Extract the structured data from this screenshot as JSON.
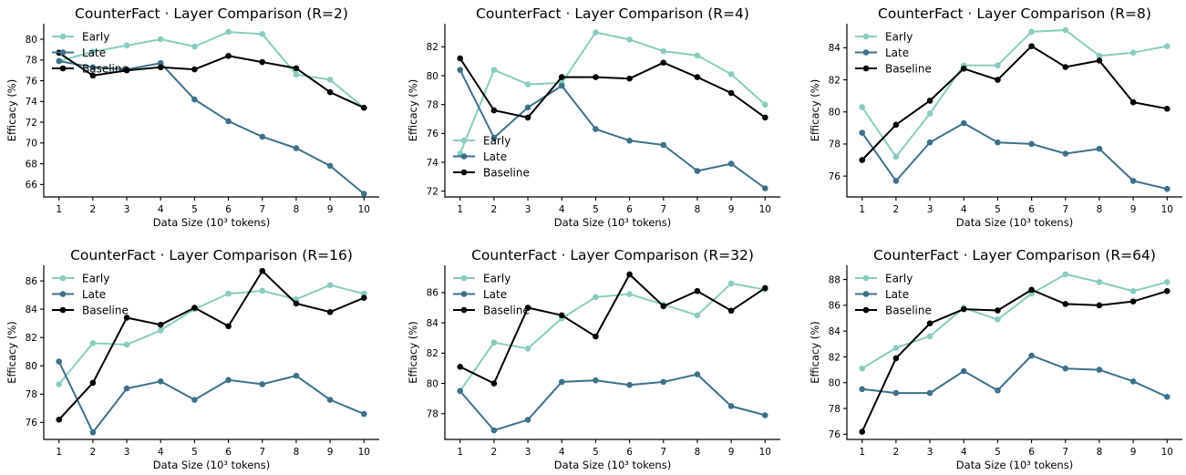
{
  "chart_data": [
    {
      "type": "line",
      "title": "CounterFact · Layer Comparison (R=2)",
      "xlabel": "Data Size (10³ tokens)",
      "ylabel": "Efficacy (%)",
      "x": [
        1,
        2,
        3,
        4,
        5,
        6,
        7,
        8,
        9,
        10
      ],
      "ylim": [
        64.8,
        81.5
      ],
      "yticks": [
        66,
        68,
        70,
        72,
        74,
        76,
        78,
        80
      ],
      "legend": "upper-left",
      "series": [
        {
          "name": "Early",
          "color": "#88cdbe",
          "values": [
            77.9,
            78.8,
            79.4,
            80.0,
            79.3,
            80.7,
            80.5,
            76.6,
            76.1,
            73.4
          ]
        },
        {
          "name": "Late",
          "color": "#3d7189",
          "values": [
            77.9,
            77.3,
            77.1,
            77.7,
            74.2,
            72.1,
            70.6,
            69.5,
            67.8,
            65.1
          ]
        },
        {
          "name": "Baseline",
          "color": "#000000",
          "values": [
            78.7,
            76.5,
            77.0,
            77.3,
            77.1,
            78.4,
            77.8,
            77.2,
            74.9,
            73.4
          ]
        }
      ]
    },
    {
      "type": "line",
      "title": "CounterFact · Layer Comparison (R=4)",
      "xlabel": "Data Size (10³ tokens)",
      "ylabel": "Efficacy (%)",
      "x": [
        1,
        2,
        3,
        4,
        5,
        6,
        7,
        8,
        9,
        10
      ],
      "ylim": [
        71.6,
        83.6
      ],
      "yticks": [
        72,
        74,
        76,
        78,
        80,
        82
      ],
      "legend": "lower-left",
      "series": [
        {
          "name": "Early",
          "color": "#88cdbe",
          "values": [
            74.6,
            80.4,
            79.4,
            79.5,
            83.0,
            82.5,
            81.7,
            81.4,
            80.1,
            78.0
          ]
        },
        {
          "name": "Late",
          "color": "#3d7189",
          "values": [
            80.4,
            75.7,
            77.8,
            79.3,
            76.3,
            75.5,
            75.2,
            73.4,
            73.9,
            72.2
          ]
        },
        {
          "name": "Baseline",
          "color": "#000000",
          "values": [
            81.2,
            77.6,
            77.1,
            79.9,
            79.9,
            79.8,
            80.9,
            79.9,
            78.8,
            77.1
          ]
        }
      ]
    },
    {
      "type": "line",
      "title": "CounterFact · Layer Comparison (R=8)",
      "xlabel": "Data Size (10³ tokens)",
      "ylabel": "Efficacy (%)",
      "x": [
        1,
        2,
        3,
        4,
        5,
        6,
        7,
        8,
        9,
        10
      ],
      "ylim": [
        74.7,
        85.5
      ],
      "yticks": [
        76,
        78,
        80,
        82,
        84
      ],
      "legend": "upper-left",
      "series": [
        {
          "name": "Early",
          "color": "#88cdbe",
          "values": [
            80.3,
            77.2,
            79.9,
            82.9,
            82.9,
            85.0,
            85.1,
            83.5,
            83.7,
            84.1
          ]
        },
        {
          "name": "Late",
          "color": "#3d7189",
          "values": [
            78.7,
            75.7,
            78.1,
            79.3,
            78.1,
            78.0,
            77.4,
            77.7,
            75.7,
            75.2
          ]
        },
        {
          "name": "Baseline",
          "color": "#000000",
          "values": [
            77.0,
            79.2,
            80.7,
            82.7,
            82.0,
            84.1,
            82.8,
            83.2,
            80.6,
            80.2
          ]
        }
      ]
    },
    {
      "type": "line",
      "title": "CounterFact · Layer Comparison (R=16)",
      "xlabel": "Data Size (10³ tokens)",
      "ylabel": "Efficacy (%)",
      "x": [
        1,
        2,
        3,
        4,
        5,
        6,
        7,
        8,
        9,
        10
      ],
      "ylim": [
        74.8,
        87.1
      ],
      "yticks": [
        76,
        78,
        80,
        82,
        84,
        86
      ],
      "legend": "upper-left",
      "series": [
        {
          "name": "Early",
          "color": "#88cdbe",
          "values": [
            78.7,
            81.6,
            81.5,
            82.5,
            84.0,
            85.1,
            85.3,
            84.7,
            85.7,
            85.1
          ]
        },
        {
          "name": "Late",
          "color": "#3d7189",
          "values": [
            80.3,
            75.3,
            78.4,
            78.9,
            77.6,
            79.0,
            78.7,
            79.3,
            77.6,
            76.6
          ]
        },
        {
          "name": "Baseline",
          "color": "#000000",
          "values": [
            76.2,
            78.8,
            83.4,
            82.9,
            84.1,
            82.8,
            86.7,
            84.4,
            83.8,
            84.8
          ]
        }
      ]
    },
    {
      "type": "line",
      "title": "CounterFact · Layer Comparison (R=32)",
      "xlabel": "Data Size (10³ tokens)",
      "ylabel": "Efficacy (%)",
      "x": [
        1,
        2,
        3,
        4,
        5,
        6,
        7,
        8,
        9,
        10
      ],
      "ylim": [
        76.3,
        87.8
      ],
      "yticks": [
        78,
        80,
        82,
        84,
        86
      ],
      "legend": "upper-left",
      "series": [
        {
          "name": "Early",
          "color": "#88cdbe",
          "values": [
            79.5,
            82.7,
            82.3,
            84.3,
            85.7,
            85.9,
            85.2,
            84.5,
            86.6,
            86.2
          ]
        },
        {
          "name": "Late",
          "color": "#3d7189",
          "values": [
            79.5,
            76.9,
            77.6,
            80.1,
            80.2,
            79.9,
            80.1,
            80.6,
            78.5,
            77.9
          ]
        },
        {
          "name": "Baseline",
          "color": "#000000",
          "values": [
            81.1,
            80.0,
            85.0,
            84.5,
            83.1,
            87.2,
            85.1,
            86.1,
            84.8,
            86.3
          ]
        }
      ]
    },
    {
      "type": "line",
      "title": "CounterFact · Layer Comparison (R=64)",
      "xlabel": "Data Size (10³ tokens)",
      "ylabel": "Efficacy (%)",
      "x": [
        1,
        2,
        3,
        4,
        5,
        6,
        7,
        8,
        9,
        10
      ],
      "ylim": [
        75.6,
        89.1
      ],
      "yticks": [
        76,
        78,
        80,
        82,
        84,
        86,
        88
      ],
      "legend": "upper-left",
      "series": [
        {
          "name": "Early",
          "color": "#88cdbe",
          "values": [
            81.1,
            82.7,
            83.6,
            85.8,
            84.9,
            86.9,
            88.4,
            87.8,
            87.1,
            87.8
          ]
        },
        {
          "name": "Late",
          "color": "#3d7189",
          "values": [
            79.5,
            79.2,
            79.2,
            80.9,
            79.4,
            82.1,
            81.1,
            81.0,
            80.1,
            78.9
          ]
        },
        {
          "name": "Baseline",
          "color": "#000000",
          "values": [
            76.2,
            81.9,
            84.6,
            85.7,
            85.6,
            87.2,
            86.1,
            86.0,
            86.3,
            87.1
          ]
        }
      ]
    }
  ]
}
